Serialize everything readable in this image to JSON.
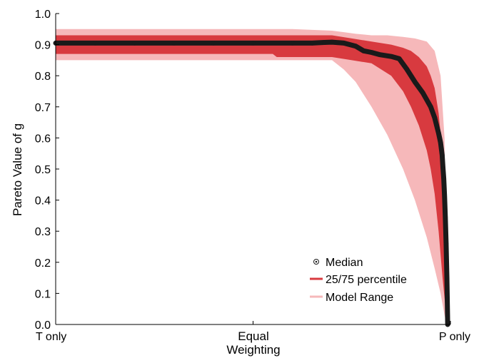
{
  "chart_data": {
    "type": "area",
    "title": "",
    "xlabel_lines": [
      "Equal",
      "Weighting"
    ],
    "ylabel": "Pareto Value of g",
    "xlim": [
      0,
      1
    ],
    "ylim": [
      0,
      1
    ],
    "x_ticks": [
      {
        "value": 0.0,
        "label": "T only"
      },
      {
        "value": 0.5,
        "label": ""
      },
      {
        "value": 1.0,
        "label": "P only"
      }
    ],
    "y_ticks": [
      {
        "value": 0.0,
        "label": "0.0"
      },
      {
        "value": 0.1,
        "label": "0.1"
      },
      {
        "value": 0.2,
        "label": "0.2"
      },
      {
        "value": 0.3,
        "label": "0.3"
      },
      {
        "value": 0.4,
        "label": "0.4"
      },
      {
        "value": 0.5,
        "label": "0.5"
      },
      {
        "value": 0.6,
        "label": "0.6"
      },
      {
        "value": 0.7,
        "label": "0.7"
      },
      {
        "value": 0.8,
        "label": "0.8"
      },
      {
        "value": 0.9,
        "label": "0.9"
      },
      {
        "value": 1.0,
        "label": "1.0"
      }
    ],
    "legend_position": "bottom-right",
    "series": [
      {
        "name": "Median",
        "kind": "points",
        "color": "#1a1a1a",
        "x": [
          0.0,
          0.1,
          0.2,
          0.3,
          0.4,
          0.5,
          0.6,
          0.65,
          0.68,
          0.7,
          0.73,
          0.76,
          0.78,
          0.8,
          0.82,
          0.85,
          0.87,
          0.89,
          0.91,
          0.93,
          0.95,
          0.96,
          0.965,
          0.97,
          0.975,
          0.977,
          0.979,
          0.981,
          0.983,
          0.985,
          0.987,
          0.989,
          0.991,
          0.993
        ],
        "y": [
          0.905,
          0.905,
          0.905,
          0.905,
          0.905,
          0.905,
          0.905,
          0.905,
          0.907,
          0.908,
          0.905,
          0.895,
          0.88,
          0.875,
          0.868,
          0.862,
          0.855,
          0.82,
          0.78,
          0.745,
          0.7,
          0.665,
          0.64,
          0.615,
          0.585,
          0.565,
          0.545,
          0.505,
          0.47,
          0.415,
          0.345,
          0.26,
          0.15,
          0.0
        ]
      },
      {
        "name": "25/75 percentile",
        "kind": "band",
        "color": "#d83a3f",
        "x": [
          0.0,
          0.2,
          0.4,
          0.55,
          0.56,
          0.7,
          0.75,
          0.8,
          0.85,
          0.88,
          0.9,
          0.92,
          0.94,
          0.95,
          0.96,
          0.97,
          0.98,
          0.99,
          0.993
        ],
        "lower": [
          0.87,
          0.87,
          0.87,
          0.87,
          0.86,
          0.86,
          0.85,
          0.84,
          0.8,
          0.75,
          0.7,
          0.64,
          0.56,
          0.5,
          0.42,
          0.3,
          0.15,
          0.02,
          0.0
        ],
        "upper": [
          0.93,
          0.93,
          0.93,
          0.93,
          0.93,
          0.93,
          0.92,
          0.91,
          0.9,
          0.89,
          0.88,
          0.86,
          0.83,
          0.8,
          0.76,
          0.68,
          0.55,
          0.3,
          0.0
        ]
      },
      {
        "name": "Model Range",
        "kind": "band",
        "color": "#f6b8ba",
        "x": [
          0.0,
          0.2,
          0.4,
          0.6,
          0.7,
          0.73,
          0.76,
          0.8,
          0.84,
          0.88,
          0.91,
          0.94,
          0.96,
          0.975,
          0.985,
          0.99
        ],
        "lower": [
          0.85,
          0.85,
          0.85,
          0.85,
          0.85,
          0.82,
          0.78,
          0.7,
          0.61,
          0.5,
          0.4,
          0.28,
          0.18,
          0.1,
          0.03,
          0.0
        ],
        "upper": [
          0.95,
          0.95,
          0.95,
          0.95,
          0.945,
          0.94,
          0.935,
          0.93,
          0.93,
          0.925,
          0.92,
          0.91,
          0.88,
          0.8,
          0.6,
          0.0
        ]
      }
    ],
    "legend": [
      {
        "label": "Median",
        "series": 0
      },
      {
        "label": "25/75 percentile",
        "series": 1
      },
      {
        "label": "Model Range",
        "series": 2
      }
    ]
  }
}
